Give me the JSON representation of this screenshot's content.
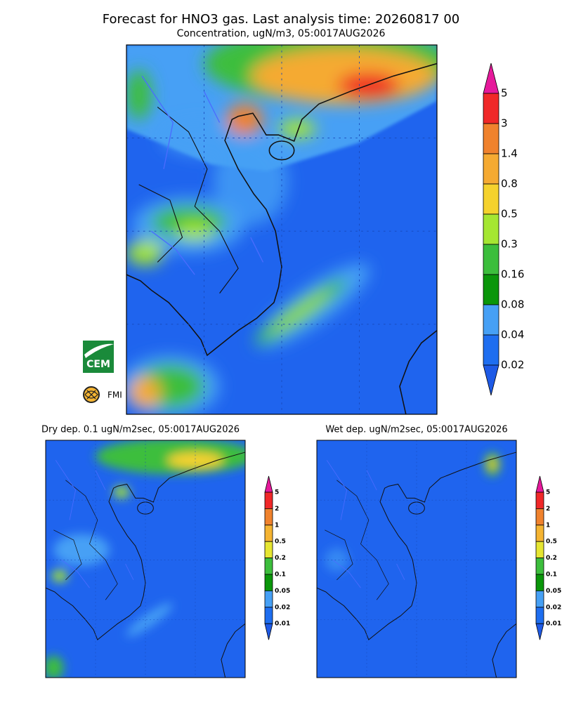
{
  "header": {
    "title": "Forecast for HNO3 gas. Last analysis time: 20260817 00",
    "subtitle": "Concentration, ugN/m3, 05:0017AUG2026"
  },
  "main_colorbar": {
    "labels": [
      "5",
      "3",
      "1.4",
      "0.8",
      "0.5",
      "0.3",
      "0.16",
      "0.08",
      "0.04",
      "0.02"
    ],
    "colors": [
      "#e6199b",
      "#f02828",
      "#f0822d",
      "#f5aa32",
      "#f5d22d",
      "#a5e632",
      "#3cbe3c",
      "#0a960a",
      "#46a0f5",
      "#1e6ef0",
      "#1e5ae6"
    ]
  },
  "dry_panel": {
    "title": "Dry dep. 0.1 ugN/m2sec, 05:0017AUG2026",
    "colorbar": {
      "labels": [
        "5",
        "2",
        "1",
        "0.5",
        "0.2",
        "0.1",
        "0.05",
        "0.02",
        "0.01"
      ],
      "colors": [
        "#e6199b",
        "#f02828",
        "#f0822d",
        "#f5b432",
        "#e6e632",
        "#3cbe3c",
        "#0a960a",
        "#46a0f5",
        "#1e6ef0",
        "#1e5ae6"
      ]
    }
  },
  "wet_panel": {
    "title": "Wet dep. ugN/m2sec, 05:0017AUG2026",
    "colorbar": {
      "labels": [
        "5",
        "2",
        "1",
        "0.5",
        "0.2",
        "0.1",
        "0.05",
        "0.02",
        "0.01"
      ],
      "colors": [
        "#e6199b",
        "#f02828",
        "#f0822d",
        "#f5b432",
        "#e6e632",
        "#3cbe3c",
        "#0a960a",
        "#46a0f5",
        "#1e6ef0",
        "#1e5ae6"
      ]
    }
  },
  "logos": {
    "cem": "CEM",
    "fmi": "FMI"
  }
}
